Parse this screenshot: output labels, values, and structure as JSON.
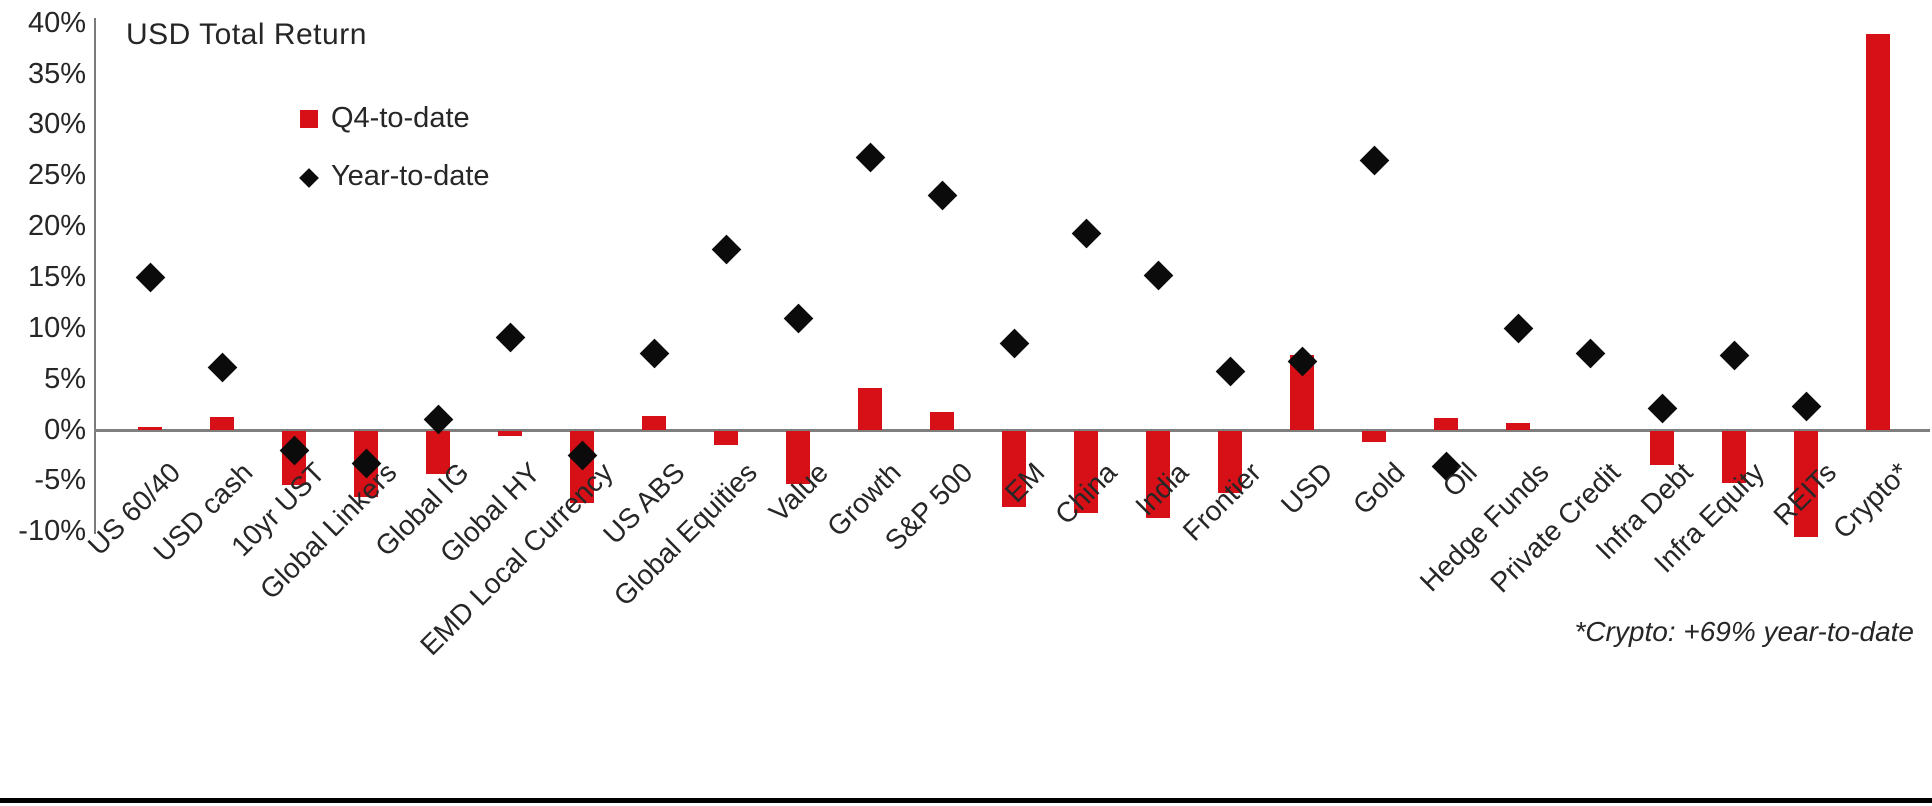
{
  "title": "USD Total Return",
  "legend": {
    "q4_label": "Q4-to-date",
    "ytd_label": "Year-to-date"
  },
  "footnote": "*Crypto: +69% year-to-date",
  "colors": {
    "bar_red": "#D70F17",
    "diamond_black": "#0B0B0B",
    "axis_gray": "#7F7F7F",
    "text": "#262626"
  },
  "chart_data": {
    "type": "bar",
    "subtype": "bar-with-diamond-scatter-overlay",
    "title": "USD Total Return",
    "categories": [
      "US 60/40",
      "USD cash",
      "10yr UST",
      "Global Linkers",
      "Global IG",
      "Global HY",
      "EMD Local Currency",
      "US ABS",
      "Global Equities",
      "Value",
      "Growth",
      "S&P 500",
      "EM",
      "China",
      "India",
      "Frontier",
      "USD",
      "Gold",
      "Oil",
      "Hedge Funds",
      "Private Credit",
      "Infra Debt",
      "Infra Equity",
      "REITs",
      "Crypto*"
    ],
    "series": [
      {
        "name": "Q4-to-date",
        "marker": "bar",
        "color": "#D70F17",
        "values": [
          0.3,
          1.3,
          -5.4,
          -6.5,
          -4.3,
          -0.5,
          -7.1,
          1.4,
          -1.4,
          -5.3,
          4.2,
          1.8,
          -7.5,
          -8.1,
          -8.6,
          -6.1,
          7.4,
          -1.1,
          1.2,
          0.7,
          0.0,
          -3.4,
          -5.2,
          -10.5,
          39.0
        ]
      },
      {
        "name": "Year-to-date",
        "marker": "diamond",
        "color": "#0B0B0B",
        "values": [
          15.0,
          6.2,
          -2.0,
          -3.2,
          1.1,
          9.1,
          -2.5,
          7.6,
          17.8,
          11.0,
          26.8,
          23.1,
          8.6,
          19.4,
          15.2,
          5.8,
          6.8,
          26.5,
          -3.5,
          10.0,
          7.6,
          2.2,
          7.4,
          2.4,
          null
        ]
      }
    ],
    "y_ticks": [
      "40%",
      "35%",
      "30%",
      "25%",
      "20%",
      "15%",
      "10%",
      "5%",
      "0%",
      "-5%",
      "-10%"
    ],
    "y_tick_values": [
      40,
      35,
      30,
      25,
      20,
      15,
      10,
      5,
      0,
      -5,
      -10
    ],
    "ylim": [
      -10,
      40
    ],
    "xlabel": "",
    "ylabel": "",
    "grid": false,
    "legend_position": "inside-top-left",
    "annotations": [
      "*Crypto: +69% year-to-date"
    ]
  }
}
